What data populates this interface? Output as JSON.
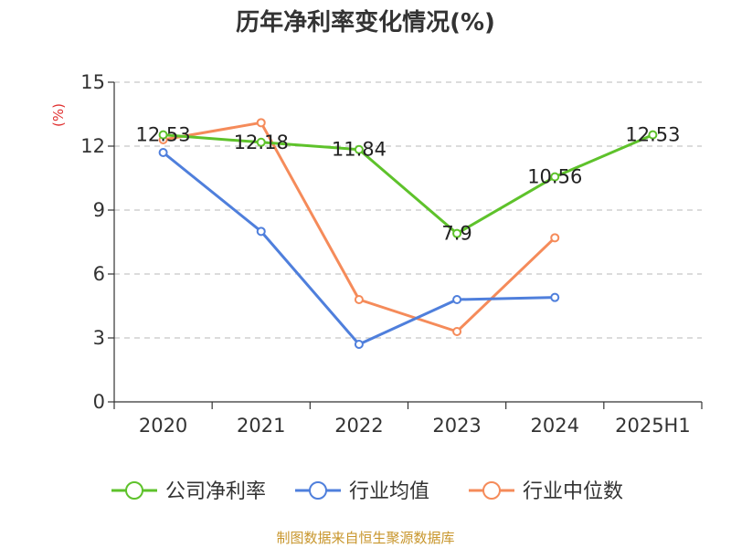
{
  "chart_data": {
    "type": "line",
    "title": "历年净利率变化情况(%)",
    "ylabel": "(%)",
    "xlabel": "",
    "categories": [
      "2020",
      "2021",
      "2022",
      "2023",
      "2024",
      "2025H1"
    ],
    "ylim": [
      0,
      15
    ],
    "yticks": [
      0,
      3,
      6,
      9,
      12,
      15
    ],
    "grid": true,
    "legend_position": "bottom",
    "series": [
      {
        "name": "公司净利率",
        "color": "#5ec22b",
        "values": [
          12.53,
          12.18,
          11.84,
          7.9,
          10.56,
          12.53
        ],
        "labels": [
          "12.53",
          "12.18",
          "11.84",
          "7.9",
          "10.56",
          "12.53"
        ]
      },
      {
        "name": "行业均值",
        "color": "#4f7fdc",
        "values": [
          11.7,
          8.0,
          2.7,
          4.8,
          4.9,
          null
        ]
      },
      {
        "name": "行业中位数",
        "color": "#f58b5a",
        "values": [
          12.3,
          13.1,
          4.8,
          3.3,
          7.7,
          null
        ]
      }
    ]
  },
  "source": "制图数据来自恒生聚源数据库"
}
